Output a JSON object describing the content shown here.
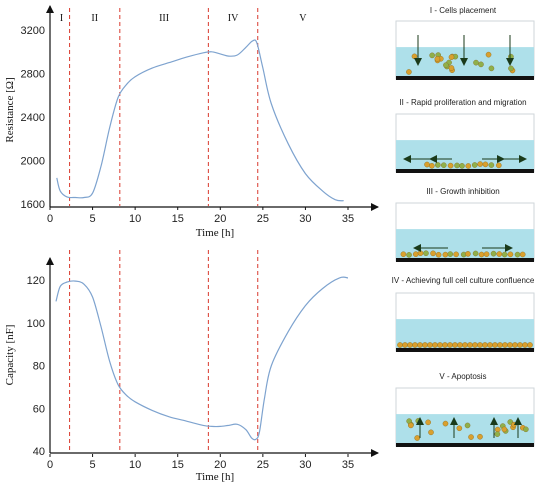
{
  "colors": {
    "curve": "#7ea3cf",
    "divider": "#d93a2e",
    "axis": "#111111",
    "medium": "#aee0ea",
    "medium_light": "#ffffff",
    "cell": "#d9a02e",
    "cell_edge": "#8a6a1e",
    "substrate": "#111111",
    "arrow": "#1a3a1a"
  },
  "phases": [
    "I",
    "II",
    "III",
    "IV",
    "V"
  ],
  "phase_boundaries": [
    2.3,
    8.2,
    18.6,
    24.4
  ],
  "stages": [
    {
      "title": "I - Cells placement",
      "icon": "down-arrows"
    },
    {
      "title": "II - Rapid proliferation and migration",
      "icon": "lateral-arrows"
    },
    {
      "title": "III - Growth inhibition",
      "icon": "lateral-arrows-short"
    },
    {
      "title": "IV - Achieving full cell culture confluence",
      "icon": "none"
    },
    {
      "title": "V - Apoptosis",
      "icon": "up-arrows"
    }
  ],
  "chart_data": [
    {
      "type": "line",
      "xlabel": "Time [h]",
      "ylabel": "Resistance [Ω]",
      "xlim": [
        0,
        37
      ],
      "ylim": [
        1600,
        3300
      ],
      "xticks": [
        "0",
        "5",
        "10",
        "15",
        "20",
        "25",
        "30",
        "35"
      ],
      "yticks": [
        "1600",
        "2000",
        "2400",
        "2800",
        "3200"
      ],
      "series": [
        {
          "x": [
            0.8,
            1.2,
            2,
            3,
            4,
            5,
            6,
            7,
            8,
            9,
            10,
            12,
            14,
            16,
            18,
            19,
            20,
            21,
            22,
            23,
            23.8,
            24.3,
            25,
            26,
            28,
            30,
            32,
            33.5,
            34.5
          ],
          "y": [
            1840,
            1720,
            1665,
            1660,
            1660,
            1700,
            1950,
            2300,
            2580,
            2700,
            2770,
            2850,
            2900,
            2950,
            2990,
            3000,
            2980,
            2960,
            2970,
            3040,
            3100,
            3080,
            2850,
            2520,
            2150,
            1880,
            1720,
            1640,
            1630
          ]
        }
      ]
    },
    {
      "type": "line",
      "xlabel": "Time [h]",
      "ylabel": "Capacity [nF]",
      "xlim": [
        0,
        37
      ],
      "ylim": [
        40,
        125
      ],
      "xticks": [
        "0",
        "5",
        "10",
        "15",
        "20",
        "25",
        "30",
        "35"
      ],
      "yticks": [
        "40",
        "60",
        "80",
        "100",
        "120"
      ],
      "series": [
        {
          "x": [
            0.7,
            1.2,
            2,
            3,
            4,
            5,
            6,
            7,
            8,
            9,
            10,
            12,
            14,
            16,
            18,
            19,
            20,
            21,
            22,
            23,
            23.7,
            24.2,
            24.6,
            25.2,
            26,
            28,
            30,
            32,
            34,
            35
          ],
          "y": [
            110,
            117,
            119,
            119.5,
            118,
            112,
            98,
            82,
            71,
            66,
            63,
            59,
            56,
            54,
            52,
            51.5,
            51.5,
            52,
            52.5,
            50,
            46,
            45.5,
            49,
            65,
            80,
            96,
            108,
            116,
            121,
            121
          ]
        }
      ]
    }
  ]
}
